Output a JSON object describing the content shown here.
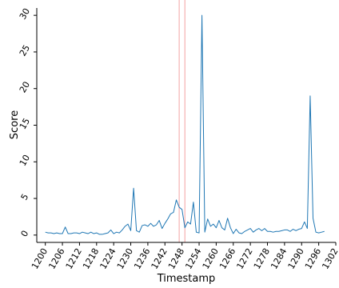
{
  "chart_data": {
    "type": "line",
    "title": "",
    "xlabel": "Timestamp",
    "ylabel": "Score",
    "xlim": [
      1197,
      1302
    ],
    "ylim": [
      -1,
      31
    ],
    "xticks": [
      1200,
      1206,
      1212,
      1218,
      1224,
      1230,
      1236,
      1242,
      1248,
      1254,
      1260,
      1266,
      1272,
      1278,
      1284,
      1290,
      1296,
      1302
    ],
    "yticks": [
      0,
      5,
      10,
      15,
      20,
      25,
      30
    ],
    "vlines": [
      1247,
      1249
    ],
    "grid": false,
    "colors": {
      "line": "#1f77b4",
      "vline": "#f4a3a3"
    },
    "series": [
      {
        "x": [
          1200,
          1201,
          1202,
          1203,
          1204,
          1205,
          1206,
          1207,
          1208,
          1209,
          1210,
          1211,
          1212,
          1213,
          1214,
          1215,
          1216,
          1217,
          1218,
          1219,
          1220,
          1221,
          1222,
          1223,
          1224,
          1225,
          1226,
          1227,
          1228,
          1229,
          1230,
          1231,
          1232,
          1233,
          1234,
          1235,
          1236,
          1237,
          1238,
          1239,
          1240,
          1241,
          1242,
          1243,
          1244,
          1245,
          1246,
          1247,
          1248,
          1249,
          1250,
          1251,
          1252,
          1253,
          1254,
          1255,
          1256,
          1257,
          1258,
          1259,
          1260,
          1261,
          1262,
          1263,
          1264,
          1265,
          1266,
          1267,
          1268,
          1269,
          1270,
          1271,
          1272,
          1273,
          1274,
          1275,
          1276,
          1277,
          1278,
          1279,
          1280,
          1281,
          1282,
          1283,
          1284,
          1285,
          1286,
          1287,
          1288,
          1289,
          1290,
          1291,
          1292,
          1293,
          1294,
          1295,
          1296,
          1297,
          1298
        ],
        "values": [
          0.4,
          0.3,
          0.3,
          0.2,
          0.3,
          0.2,
          0.2,
          1.1,
          0.2,
          0.2,
          0.3,
          0.3,
          0.2,
          0.4,
          0.3,
          0.2,
          0.4,
          0.2,
          0.3,
          0.1,
          0.1,
          0.2,
          0.3,
          0.7,
          0.2,
          0.4,
          0.3,
          0.7,
          1.2,
          1.5,
          0.6,
          6.4,
          0.6,
          0.4,
          1.3,
          1.4,
          1.2,
          1.6,
          1.2,
          1.4,
          2.0,
          0.9,
          1.6,
          2.2,
          2.9,
          3.1,
          4.8,
          3.8,
          3.5,
          1.0,
          1.8,
          1.5,
          4.5,
          0.4,
          0.3,
          30.0,
          0.4,
          2.2,
          1.2,
          1.5,
          1.0,
          2.0,
          1.0,
          0.7,
          2.3,
          1.0,
          0.2,
          0.8,
          0.3,
          0.2,
          0.5,
          0.7,
          0.9,
          0.4,
          0.7,
          0.9,
          0.6,
          0.9,
          0.5,
          0.5,
          0.4,
          0.5,
          0.5,
          0.6,
          0.7,
          0.7,
          0.5,
          0.8,
          0.6,
          0.8,
          0.9,
          1.8,
          0.9,
          19.0,
          2.3,
          0.4,
          0.3,
          0.4,
          0.5
        ]
      }
    ]
  }
}
